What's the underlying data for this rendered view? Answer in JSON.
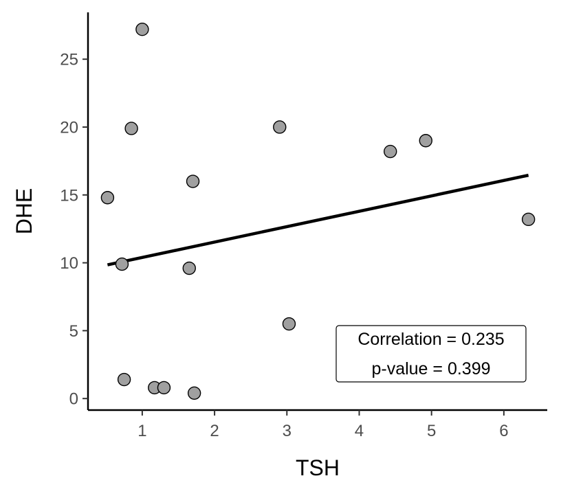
{
  "chart_data": {
    "type": "scatter",
    "xlabel": "TSH",
    "ylabel": "DHE",
    "xlim": [
      0.25,
      6.6
    ],
    "ylim": [
      -0.85,
      28.45
    ],
    "xticks": [
      1,
      2,
      3,
      4,
      5,
      6
    ],
    "yticks": [
      0,
      5,
      10,
      15,
      20,
      25
    ],
    "grid": false,
    "legend": "none",
    "points": [
      {
        "x": 0.52,
        "y": 14.8
      },
      {
        "x": 0.72,
        "y": 9.9
      },
      {
        "x": 0.75,
        "y": 1.4
      },
      {
        "x": 0.85,
        "y": 19.9
      },
      {
        "x": 1.0,
        "y": 27.2
      },
      {
        "x": 1.17,
        "y": 0.8
      },
      {
        "x": 1.3,
        "y": 0.8
      },
      {
        "x": 1.65,
        "y": 9.6
      },
      {
        "x": 1.7,
        "y": 16.0
      },
      {
        "x": 1.72,
        "y": 0.4
      },
      {
        "x": 2.9,
        "y": 20.0
      },
      {
        "x": 3.03,
        "y": 5.5
      },
      {
        "x": 4.43,
        "y": 18.2
      },
      {
        "x": 4.92,
        "y": 19.0
      },
      {
        "x": 6.34,
        "y": 13.2
      }
    ],
    "fit_line": {
      "x": [
        0.52,
        6.34
      ],
      "y": [
        9.85,
        16.45
      ]
    },
    "annotation": {
      "lines": [
        "Correlation = 0.235",
        "p-value = 0.399"
      ]
    },
    "colors": {
      "point_fill": "#a0a0a0",
      "point_stroke": "#000000",
      "line": "#000000"
    }
  }
}
